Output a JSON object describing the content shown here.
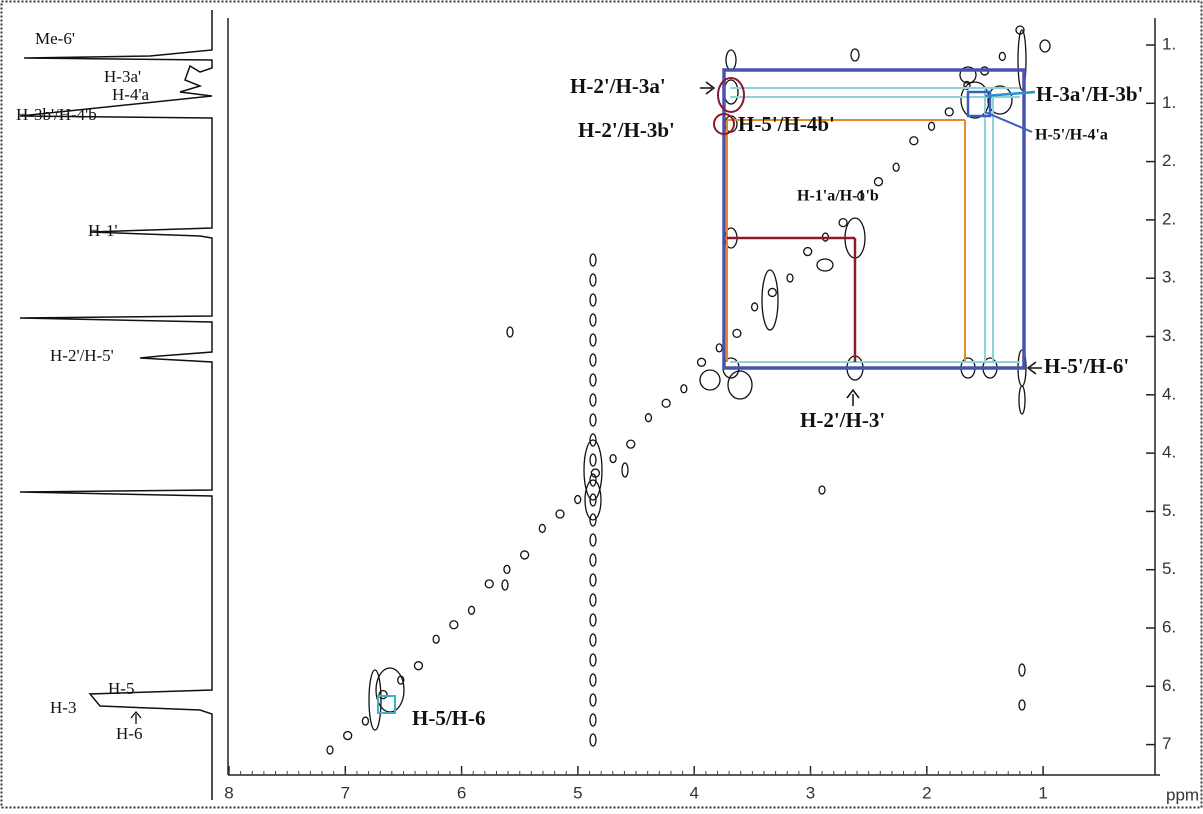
{
  "spectrum_labels": [
    "Me-6'",
    "H-3a'",
    "H-4'a",
    "H-3b'/H-4'b",
    "H-1'",
    "H-2'/H-5'",
    "H-5",
    "H-3",
    "H-6"
  ],
  "peak_labels": [
    "H-2'/H-3a'",
    "H-2'/H-3b'",
    "H-5'/H-4b'",
    "H-3a'/H-3b'",
    "H-5'/H-4'a",
    "H-1'a/H-1'b",
    "H-5'/H-6'",
    "H-2'/H-3'",
    "H-5/H-6"
  ],
  "x_axis": {
    "ticks": [
      "8",
      "7",
      "6",
      "5",
      "4",
      "3",
      "2",
      "1"
    ],
    "unit": "ppm"
  },
  "y_axis": {
    "ticks": [
      "1.",
      "1.",
      "2.",
      "2.",
      "3.",
      "3.",
      "4.",
      "4.",
      "5.",
      "5.",
      "6.",
      "6.",
      "7"
    ]
  }
}
